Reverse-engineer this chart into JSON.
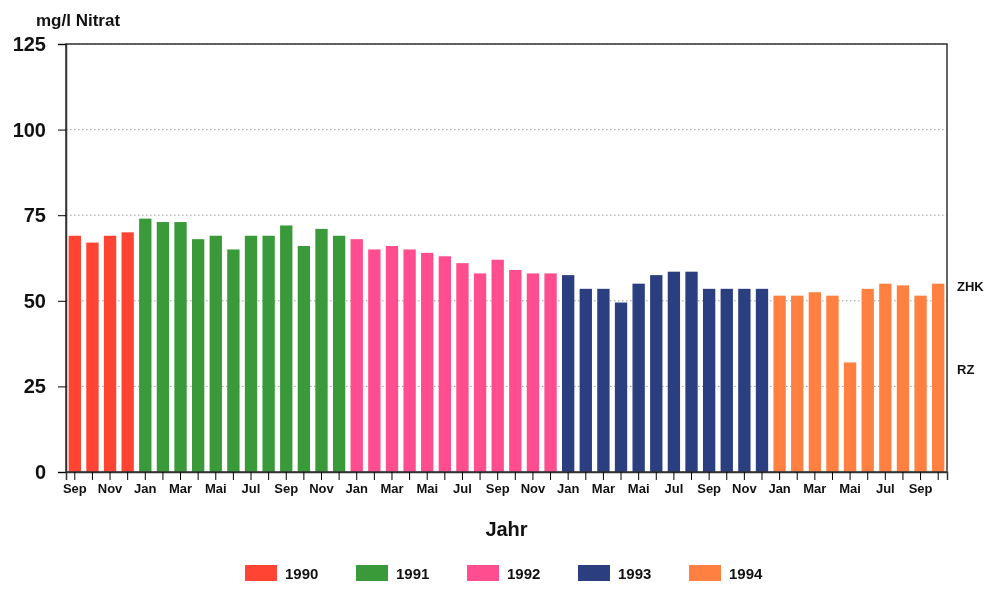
{
  "chart_data": {
    "type": "bar",
    "ylabel": "mg/l Nitrat",
    "xlabel": "Jahr",
    "categories": [
      "Sep",
      null,
      "Nov",
      null,
      "Jan",
      null,
      "Mar",
      null,
      "Mai",
      null,
      "Jul",
      null,
      "Sep",
      null,
      "Nov",
      null,
      "Jan",
      null,
      "Mar",
      null,
      "Mai",
      null,
      "Jul",
      null,
      "Sep",
      null,
      "Nov",
      null,
      "Jan",
      null,
      "Mar",
      null,
      "Mai",
      null,
      "Jul",
      null,
      "Sep",
      null,
      "Nov",
      null,
      "Jan",
      null,
      "Mar",
      null,
      "Mai",
      null,
      "Jul",
      null,
      "Sep",
      null
    ],
    "series": [
      {
        "name": "1990",
        "color": "#ff4433",
        "values": [
          69,
          67,
          69,
          70,
          null,
          null,
          null,
          null,
          null,
          null,
          null,
          null,
          null,
          null,
          null,
          null,
          null,
          null,
          null,
          null,
          null,
          null,
          null,
          null,
          null,
          null,
          null,
          null,
          null,
          null,
          null,
          null,
          null,
          null,
          null,
          null,
          null,
          null,
          null,
          null,
          null,
          null,
          null,
          null,
          null,
          null,
          null,
          null,
          null,
          null
        ]
      },
      {
        "name": "1991",
        "color": "#3a9a3a",
        "values": [
          null,
          null,
          null,
          null,
          74,
          73,
          73,
          68,
          69,
          65,
          69,
          69,
          72,
          66,
          71,
          69,
          null,
          null,
          null,
          null,
          null,
          null,
          null,
          null,
          null,
          null,
          null,
          null,
          null,
          null,
          null,
          null,
          null,
          null,
          null,
          null,
          null,
          null,
          null,
          null,
          null,
          null,
          null,
          null,
          null,
          null,
          null,
          null,
          null,
          null
        ]
      },
      {
        "name": "1992",
        "color": "#ff4d8f",
        "values": [
          null,
          null,
          null,
          null,
          null,
          null,
          null,
          null,
          null,
          null,
          null,
          null,
          null,
          null,
          null,
          null,
          68,
          65,
          66,
          65,
          64,
          63,
          61,
          58,
          62,
          59,
          58,
          58,
          null,
          null,
          null,
          null,
          null,
          null,
          null,
          null,
          null,
          null,
          null,
          null,
          null,
          null,
          null,
          null,
          null,
          null,
          null,
          null,
          null,
          null
        ]
      },
      {
        "name": "1993",
        "color": "#2b3f80",
        "values": [
          null,
          null,
          null,
          null,
          null,
          null,
          null,
          null,
          null,
          null,
          null,
          null,
          null,
          null,
          null,
          null,
          null,
          null,
          null,
          null,
          null,
          null,
          null,
          null,
          null,
          null,
          null,
          null,
          57.5,
          53.5,
          53.5,
          49.5,
          55,
          57.5,
          58.5,
          58.5,
          53.5,
          53.5,
          53.5,
          53.5,
          null,
          null,
          null,
          null,
          null,
          null,
          null,
          null,
          null,
          null
        ]
      },
      {
        "name": "1994",
        "color": "#ff8040",
        "values": [
          null,
          null,
          null,
          null,
          null,
          null,
          null,
          null,
          null,
          null,
          null,
          null,
          null,
          null,
          null,
          null,
          null,
          null,
          null,
          null,
          null,
          null,
          null,
          null,
          null,
          null,
          null,
          null,
          null,
          null,
          null,
          null,
          null,
          null,
          null,
          null,
          null,
          null,
          null,
          null,
          51.5,
          51.5,
          52.5,
          51.5,
          32,
          53.5,
          55,
          54.5,
          51.5,
          55
        ]
      }
    ],
    "ylim": [
      0,
      125
    ],
    "yticks": [
      0,
      25,
      50,
      75,
      100,
      125
    ],
    "grid": "y",
    "legend": "bottom",
    "annotations": [
      "ZHK",
      "RZ"
    ]
  }
}
